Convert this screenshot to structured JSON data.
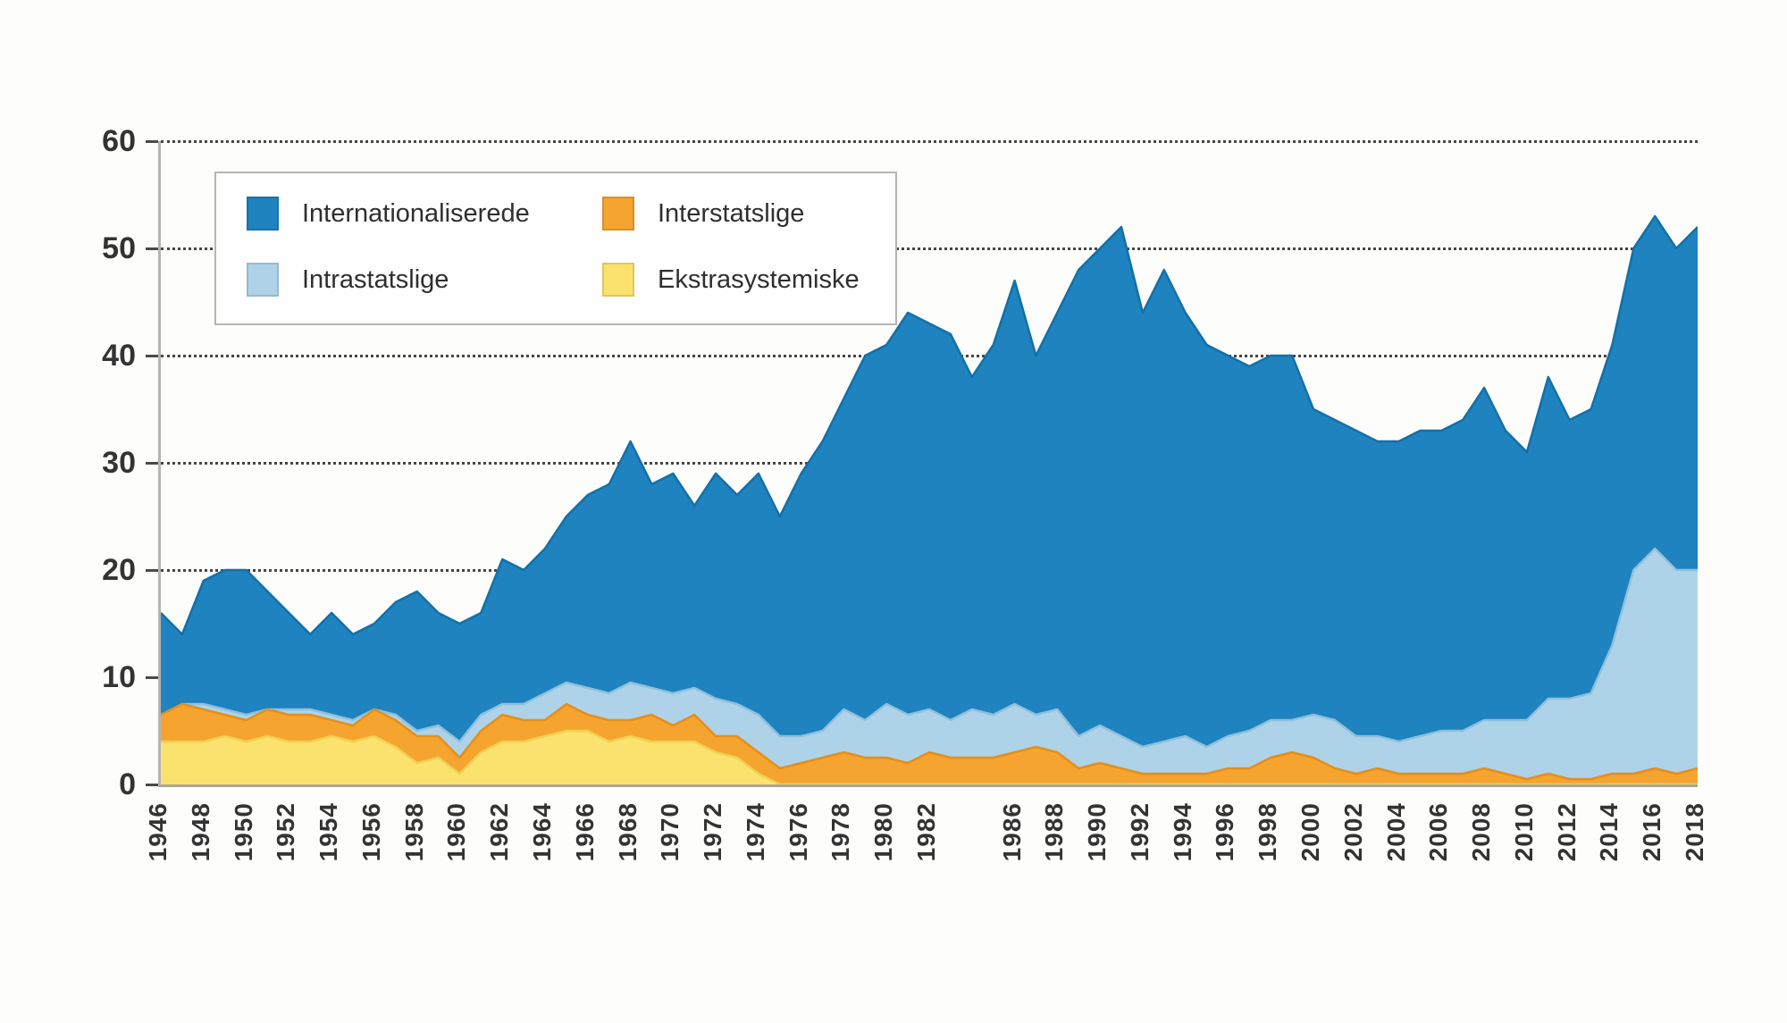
{
  "legend": {
    "items": [
      {
        "label": "Internationaliserede",
        "color": "#1e83bf"
      },
      {
        "label": "Interstatslige",
        "color": "#f5a42f"
      },
      {
        "label": "Intrastatslige",
        "color": "#aed3e8"
      },
      {
        "label": "Ekstrasystemiske",
        "color": "#fbe26e"
      }
    ]
  },
  "chart_data": {
    "type": "area",
    "stacked": true,
    "title": "",
    "xlabel": "",
    "ylabel": "",
    "ylim": [
      0,
      60
    ],
    "yticks": [
      0,
      10,
      20,
      30,
      40,
      50,
      60
    ],
    "grid": "horizontal-dotted",
    "legend_position": "top-left-inside",
    "grid_color": "#454545",
    "axis_color": "#b4b4b4",
    "years": [
      1946,
      1947,
      1948,
      1949,
      1950,
      1951,
      1952,
      1953,
      1954,
      1955,
      1956,
      1957,
      1958,
      1959,
      1960,
      1961,
      1962,
      1963,
      1964,
      1965,
      1966,
      1967,
      1968,
      1969,
      1970,
      1971,
      1972,
      1973,
      1974,
      1975,
      1976,
      1977,
      1978,
      1979,
      1980,
      1981,
      1982,
      1983,
      1984,
      1985,
      1986,
      1987,
      1988,
      1989,
      1990,
      1991,
      1992,
      1993,
      1994,
      1995,
      1996,
      1997,
      1998,
      1999,
      2000,
      2001,
      2002,
      2003,
      2004,
      2005,
      2006,
      2007,
      2008,
      2009,
      2010,
      2011,
      2012,
      2013,
      2014,
      2015,
      2016,
      2017,
      2018
    ],
    "xtick_labels": [
      "1946",
      "1948",
      "1950",
      "1952",
      "1954",
      "1956",
      "1958",
      "1960",
      "1962",
      "1964",
      "1966",
      "1968",
      "1970",
      "1972",
      "1974",
      "1976",
      "1978",
      "1980",
      "1982",
      "1986",
      "1988",
      "1990",
      "1992",
      "1994",
      "1996",
      "1998",
      "2000",
      "2002",
      "2004",
      "2006",
      "2008",
      "2010",
      "2012",
      "2014",
      "2016",
      "2018"
    ],
    "series": [
      {
        "name": "Ekstrasystemiske",
        "color": "#fbe26e",
        "stroke": "#f0d050",
        "values": [
          4,
          4,
          4,
          4.5,
          4,
          4.5,
          4,
          4,
          4.5,
          4,
          4.5,
          3.5,
          2,
          2.5,
          1,
          3,
          4,
          4,
          4.5,
          5,
          5,
          4,
          4.5,
          4,
          4,
          4,
          3,
          2.5,
          1,
          0,
          0,
          0,
          0,
          0,
          0,
          0,
          0,
          0,
          0,
          0,
          0,
          0,
          0,
          0,
          0,
          0,
          0,
          0,
          0,
          0,
          0,
          0,
          0,
          0,
          0,
          0,
          0,
          0,
          0,
          0,
          0,
          0,
          0,
          0,
          0,
          0,
          0,
          0,
          0,
          0,
          0,
          0,
          0
        ]
      },
      {
        "name": "Interstatslige",
        "color": "#f5a42f",
        "stroke": "#e68e1a",
        "values": [
          2.5,
          3.5,
          3,
          2,
          2,
          2.5,
          2.5,
          2.5,
          1.5,
          1.5,
          2.5,
          2.5,
          2.5,
          2,
          1.5,
          2,
          2.5,
          2,
          1.5,
          2.5,
          1.5,
          2,
          1.5,
          2.5,
          1.5,
          2.5,
          1.5,
          2,
          2,
          1.5,
          2,
          2.5,
          3,
          2.5,
          2.5,
          2,
          3,
          2.5,
          2.5,
          2.5,
          3,
          3.5,
          3,
          1.5,
          2,
          1.5,
          1,
          1,
          1,
          1,
          1.5,
          1.5,
          2.5,
          3,
          2.5,
          1.5,
          1,
          1.5,
          1,
          1,
          1,
          1,
          1.5,
          1,
          0.5,
          1,
          0.5,
          0.5,
          1,
          1,
          1.5,
          1,
          1.5
        ]
      },
      {
        "name": "Intrastatslige",
        "color": "#aed3e8",
        "stroke": "#8fc0dc",
        "values": [
          0,
          0,
          0.5,
          0.5,
          0.5,
          0,
          0.5,
          0.5,
          0.5,
          0.5,
          0,
          0.5,
          0.5,
          1,
          1.5,
          1.5,
          1,
          1.5,
          2.5,
          2,
          2.5,
          2.5,
          3.5,
          2.5,
          3,
          2.5,
          3.5,
          3,
          3.5,
          3,
          2.5,
          2.5,
          4,
          3.5,
          5,
          4.5,
          4,
          3.5,
          4.5,
          4,
          4.5,
          3,
          4,
          3,
          3.5,
          3,
          2.5,
          3,
          3.5,
          2.5,
          3,
          3.5,
          3.5,
          3,
          4,
          4.5,
          3.5,
          3,
          3,
          3.5,
          4,
          4,
          4.5,
          5,
          5.5,
          7,
          7.5,
          8,
          12,
          19,
          20.5,
          19,
          18.5
        ]
      },
      {
        "name": "Internationaliserede",
        "color": "#1e83bf",
        "stroke": "#1370a8",
        "values": [
          9.5,
          6.5,
          11.5,
          13,
          13.5,
          11,
          9,
          7,
          9.5,
          8,
          8,
          10.5,
          13,
          10.5,
          11,
          9.5,
          13.5,
          12.5,
          13.5,
          15.5,
          18,
          19.5,
          22.5,
          19,
          20.5,
          17,
          21,
          19.5,
          22.5,
          20.5,
          24.5,
          27,
          29,
          34,
          33.5,
          37.5,
          36,
          36,
          31,
          34.5,
          39.5,
          33.5,
          37,
          43.5,
          44.5,
          47.5,
          40.5,
          44,
          39.5,
          37.5,
          35.5,
          34,
          34,
          34,
          28.5,
          28,
          28.5,
          27.5,
          28,
          28.5,
          28,
          29,
          31,
          27,
          25,
          30,
          26,
          26.5,
          28,
          30,
          31,
          30,
          32
        ]
      }
    ]
  }
}
